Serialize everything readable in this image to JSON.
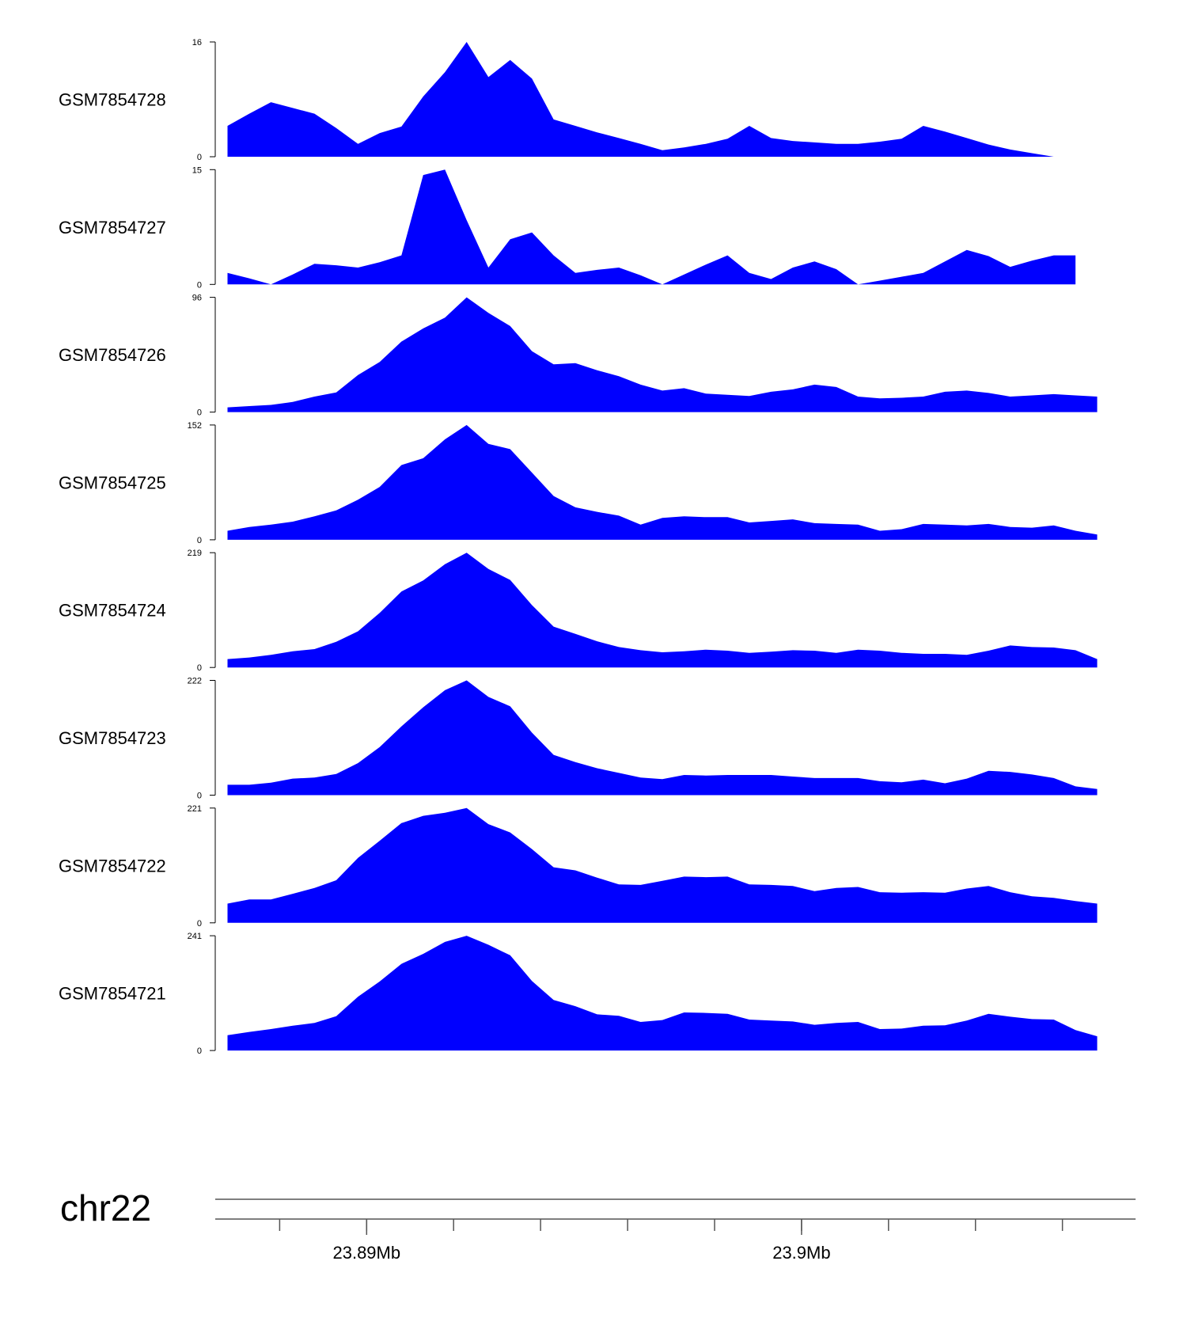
{
  "chart_data": {
    "type": "area",
    "chromosome": "chr22",
    "fill_color": "#0000ff",
    "axis_color": "#000000",
    "x_range_mb": [
      23.8867,
      23.9075
    ],
    "x_major_ticks": [
      {
        "value": 23.89,
        "label": "23.89Mb"
      },
      {
        "value": 23.9,
        "label": "23.9Mb"
      }
    ],
    "x_minor_tick_step_mb": 0.002,
    "x_positions_mb": [
      23.8868,
      23.8873,
      23.8878,
      23.8883,
      23.8888,
      23.8893,
      23.8898,
      23.8903,
      23.8908,
      23.8913,
      23.8918,
      23.8923,
      23.8928,
      23.8933,
      23.8938,
      23.8943,
      23.8948,
      23.8953,
      23.8958,
      23.8963,
      23.8968,
      23.8973,
      23.8978,
      23.8983,
      23.8988,
      23.8993,
      23.8998,
      23.9003,
      23.9008,
      23.9013,
      23.9018,
      23.9023,
      23.9028,
      23.9033,
      23.9038,
      23.9043,
      23.9048,
      23.9053,
      23.9058,
      23.9063,
      23.9068
    ],
    "series": [
      {
        "name": "GSM7854728",
        "ymax": 16,
        "end_index": 38,
        "values": [
          4.3,
          6,
          7.6,
          6.8,
          6,
          4,
          1.8,
          3.3,
          4.2,
          8.4,
          11.8,
          16,
          11.1,
          13.5,
          10.9,
          5.2,
          4.3,
          3.4,
          2.6,
          1.8,
          0.9,
          1.3,
          1.8,
          2.5,
          4.3,
          2.6,
          2.2,
          2,
          1.8,
          1.8,
          2.1,
          2.5,
          4.3,
          3.5,
          2.6,
          1.7,
          1,
          0.5,
          0
        ]
      },
      {
        "name": "GSM7854727",
        "ymax": 15,
        "end_index": 39,
        "values": [
          1.5,
          0.8,
          0,
          1.3,
          2.7,
          2.5,
          2.2,
          2.9,
          3.8,
          14.3,
          15,
          8.4,
          2.2,
          5.9,
          6.8,
          3.8,
          1.5,
          1.9,
          2.2,
          1.2,
          0,
          1.3,
          2.6,
          3.8,
          1.5,
          0.7,
          2.2,
          3,
          2,
          0,
          0.5,
          1,
          1.5,
          3,
          4.5,
          3.7,
          2.3,
          3.1,
          3.8,
          3.8
        ]
      },
      {
        "name": "GSM7854726",
        "ymax": 96,
        "end_index": 40,
        "values": [
          4,
          5,
          6,
          8.5,
          13,
          16.5,
          31,
          42,
          59,
          70,
          79,
          96,
          83,
          72,
          51,
          40,
          41,
          35,
          30,
          23,
          18,
          20,
          15.5,
          14.5,
          13.5,
          17,
          19,
          23,
          21,
          13,
          11.5,
          12,
          13,
          17,
          18,
          16,
          13,
          14,
          15,
          14,
          13
        ]
      },
      {
        "name": "GSM7854725",
        "ymax": 152,
        "end_index": 40,
        "values": [
          12,
          17,
          20,
          24,
          31,
          39,
          53,
          70,
          99,
          108,
          133,
          152,
          127,
          120,
          89,
          58,
          43,
          37,
          32,
          20,
          29,
          31,
          30,
          30,
          23,
          25,
          27,
          22,
          21,
          20,
          12,
          14,
          21,
          20,
          19,
          21,
          17,
          16,
          19,
          12,
          7
        ]
      },
      {
        "name": "GSM7854724",
        "ymax": 219,
        "end_index": 40,
        "values": [
          16,
          19,
          24,
          31,
          35,
          49,
          69,
          104,
          145,
          166,
          197,
          219,
          188,
          167,
          119,
          78,
          64,
          50,
          39,
          33,
          29,
          31,
          34,
          32,
          28,
          30,
          33,
          32,
          28,
          34,
          32,
          28,
          26,
          26,
          24,
          32,
          42,
          39,
          38,
          33,
          16
        ]
      },
      {
        "name": "GSM7854723",
        "ymax": 222,
        "end_index": 40,
        "values": [
          20,
          20,
          24,
          32,
          34,
          41,
          62,
          93,
          133,
          170,
          203,
          222,
          190,
          172,
          121,
          78,
          64,
          52,
          43,
          34,
          31,
          39,
          38,
          39,
          39,
          39,
          36,
          33,
          33,
          33,
          27,
          25,
          30,
          23,
          32,
          47,
          45,
          40,
          33,
          17,
          12
        ]
      },
      {
        "name": "GSM7854722",
        "ymax": 221,
        "end_index": 40,
        "values": [
          37,
          45,
          45,
          56,
          67,
          82,
          125,
          158,
          192,
          206,
          212,
          221,
          190,
          174,
          142,
          107,
          101,
          87,
          74,
          73,
          81,
          89,
          88,
          89,
          74,
          73,
          71,
          61,
          67,
          69,
          59,
          58,
          59,
          58,
          66,
          71,
          59,
          51,
          48,
          42,
          37
        ]
      },
      {
        "name": "GSM7854721",
        "ymax": 241,
        "end_index": 40,
        "values": [
          32,
          39,
          45,
          52,
          58,
          72,
          113,
          145,
          182,
          203,
          228,
          241,
          222,
          200,
          146,
          106,
          93,
          76,
          73,
          60,
          64,
          80,
          79,
          77,
          65,
          63,
          61,
          54,
          58,
          60,
          45,
          46,
          52,
          53,
          63,
          77,
          71,
          66,
          65,
          43,
          30
        ]
      }
    ]
  }
}
